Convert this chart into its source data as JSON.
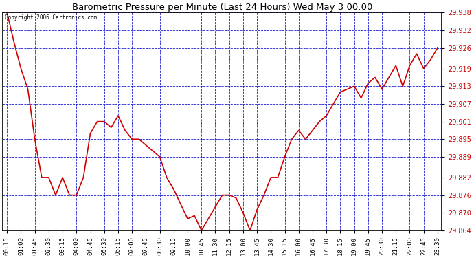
{
  "title": "Barometric Pressure per Minute (Last 24 Hours) Wed May 3 00:00",
  "copyright_text": "Copyright 2006 Cartronics.com",
  "line_color": "#cc0000",
  "background_color": "#ffffff",
  "plot_bg_color": "#ffffff",
  "grid_color": "#0000cc",
  "border_color": "#000000",
  "ylabel_color": "#cc0000",
  "ylim": [
    29.864,
    29.938
  ],
  "yticks": [
    29.864,
    29.87,
    29.876,
    29.882,
    29.889,
    29.895,
    29.901,
    29.907,
    29.913,
    29.919,
    29.926,
    29.932,
    29.938
  ],
  "xtick_labels": [
    "00:15",
    "01:00",
    "01:45",
    "02:30",
    "03:15",
    "04:00",
    "04:45",
    "05:30",
    "06:15",
    "07:00",
    "07:45",
    "08:30",
    "09:15",
    "10:00",
    "10:45",
    "11:30",
    "12:15",
    "13:00",
    "13:45",
    "14:30",
    "15:15",
    "16:00",
    "16:45",
    "17:30",
    "18:15",
    "19:00",
    "19:45",
    "20:30",
    "21:15",
    "22:00",
    "22:45",
    "23:30"
  ],
  "data_y": [
    29.938,
    29.928,
    29.919,
    29.912,
    29.895,
    29.882,
    29.882,
    29.876,
    29.882,
    29.876,
    29.876,
    29.882,
    29.897,
    29.901,
    29.901,
    29.899,
    29.903,
    29.898,
    29.895,
    29.895,
    29.893,
    29.891,
    29.889,
    29.882,
    29.878,
    29.873,
    29.868,
    29.869,
    29.864,
    29.868,
    29.872,
    29.876,
    29.876,
    29.875,
    29.87,
    29.864,
    29.871,
    29.876,
    29.882,
    29.882,
    29.889,
    29.895,
    29.898,
    29.895,
    29.898,
    29.901,
    29.903,
    29.907,
    29.911,
    29.912,
    29.913,
    29.909,
    29.914,
    29.916,
    29.912,
    29.916,
    29.92,
    29.913,
    29.92,
    29.924,
    29.919,
    29.922,
    29.926
  ]
}
